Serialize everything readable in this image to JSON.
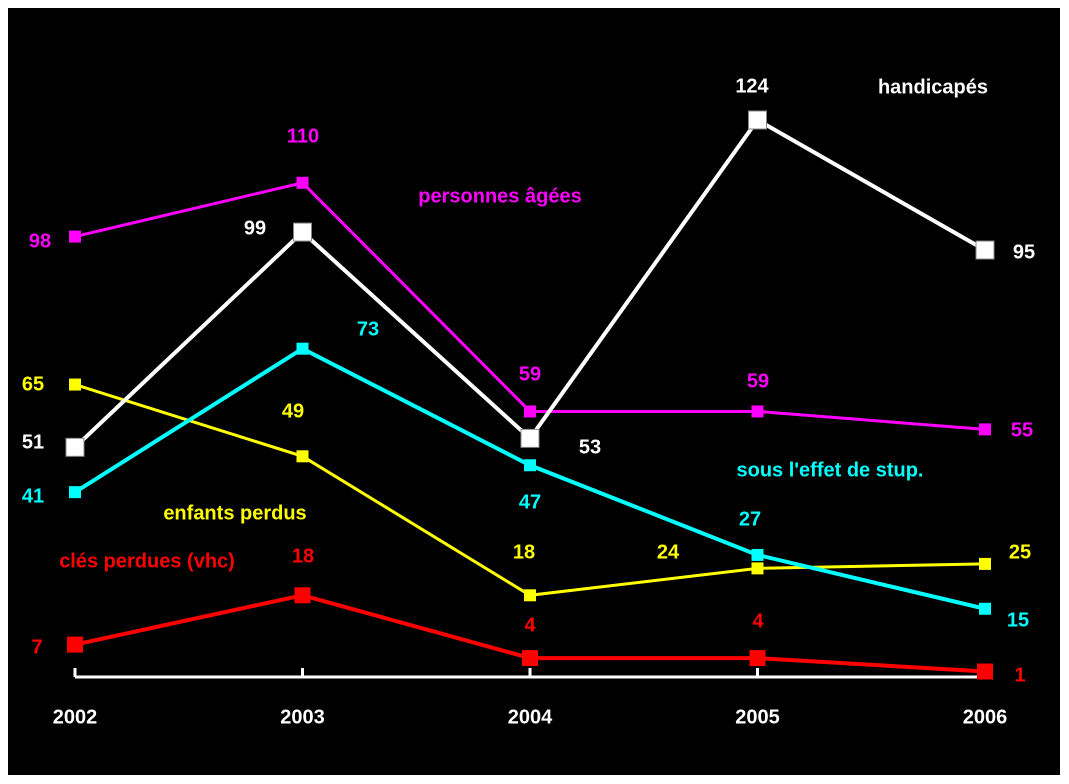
{
  "chart_data": {
    "type": "line",
    "categories": [
      "2002",
      "2003",
      "2004",
      "2005",
      "2006"
    ],
    "series": [
      {
        "name": "clés perdues (vhc)",
        "color": "#ff0000",
        "values": [
          7,
          18,
          4,
          4,
          1
        ]
      },
      {
        "name": "enfants perdus",
        "color": "#ffff00",
        "values": [
          65,
          49,
          18,
          24,
          25
        ]
      },
      {
        "name": "sous l'effet de stup.",
        "color": "#00ffff",
        "values": [
          41,
          73,
          47,
          27,
          15
        ]
      },
      {
        "name": "personnes âgées",
        "color": "#ff00ff",
        "values": [
          98,
          110,
          59,
          59,
          55
        ]
      },
      {
        "name": "handicapés",
        "color": "#ffffff",
        "values": [
          51,
          99,
          53,
          124,
          95
        ]
      }
    ]
  }
}
